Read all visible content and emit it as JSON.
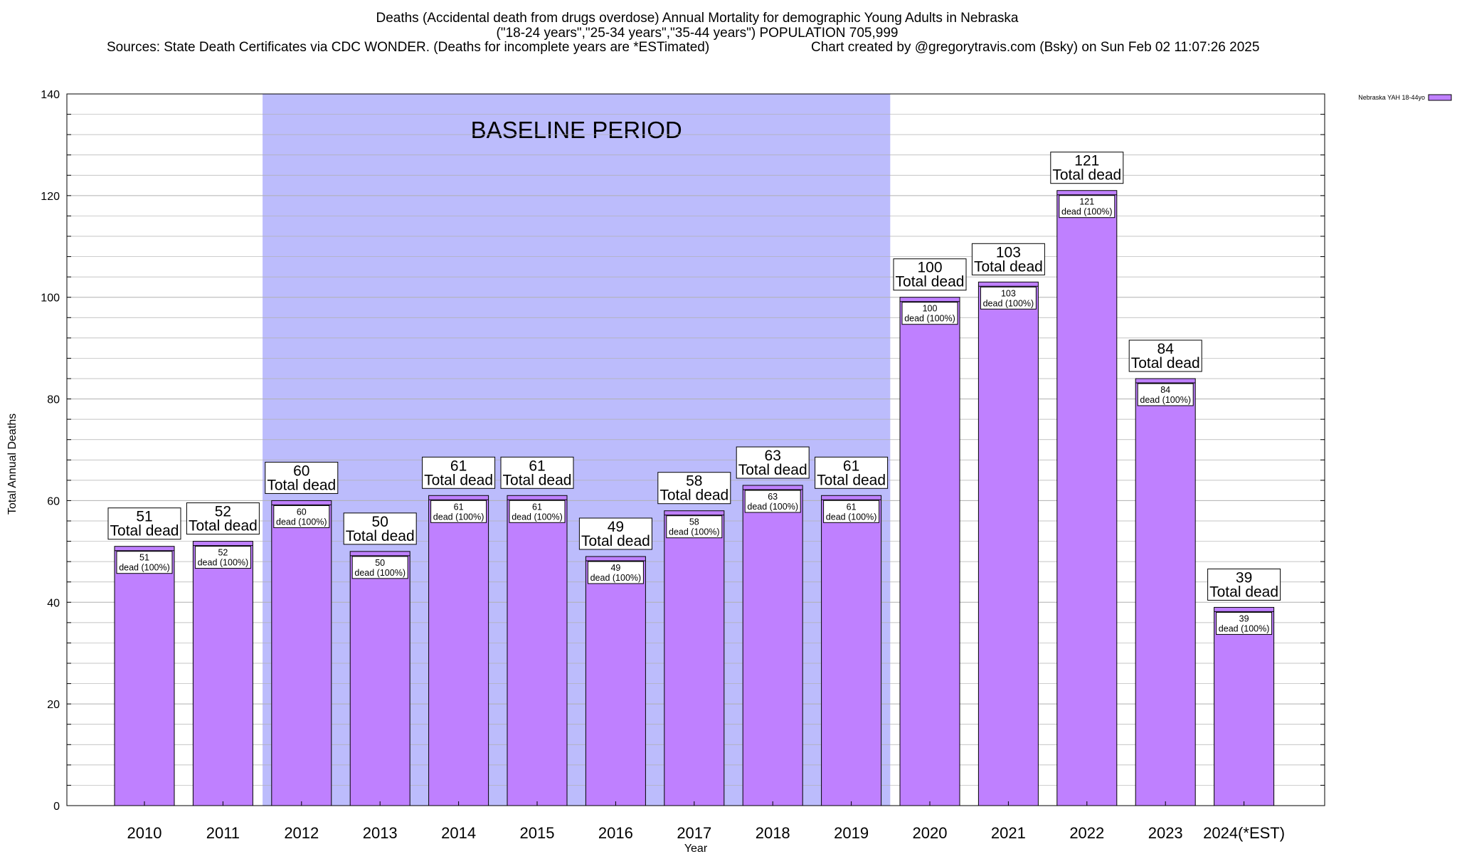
{
  "chart_data": {
    "type": "bar",
    "title_lines": [
      "Deaths (Accidental death from drugs overdose) Annual Mortality for demographic Young Adults in Nebraska",
      "(\"18-24 years\",\"25-34 years\",\"35-44 years\") POPULATION 705,999",
      "Sources: State Death Certificates via CDC WONDER. (Deaths for incomplete years are *ESTimated)",
      "Chart created by @gregorytravis.com (Bsky) on Sun Feb 02 11:07:26 2025"
    ],
    "xlabel": "Year",
    "ylabel": "Total Annual Deaths",
    "ylim": [
      0,
      140
    ],
    "y_ticks": [
      0,
      20,
      40,
      60,
      80,
      100,
      120,
      140
    ],
    "y_minor_step": 4,
    "grid": true,
    "legend": {
      "position": "top-right",
      "entries": [
        {
          "name": "Nebraska YAH 18-44yo",
          "color": "#bf80ff"
        }
      ]
    },
    "colors": {
      "bar_fill": "#bf80ff",
      "region_fill": "#bcbcfc",
      "frame": "#000000",
      "grid": "#b0b0b0"
    },
    "region": {
      "label": "BASELINE PERIOD",
      "from_category": "2012",
      "to_category": "2019"
    },
    "categories": [
      "2010",
      "2011",
      "2012",
      "2013",
      "2014",
      "2015",
      "2016",
      "2017",
      "2018",
      "2019",
      "2020",
      "2021",
      "2022",
      "2023",
      "2024(*EST)"
    ],
    "series": [
      {
        "name": "Nebraska YAH 18-44yo",
        "values": [
          51,
          52,
          60,
          50,
          61,
          61,
          49,
          58,
          63,
          61,
          100,
          103,
          121,
          84,
          39
        ]
      }
    ],
    "total_label_suffix": "Total dead",
    "inner_label_suffix": "dead (100%)"
  }
}
